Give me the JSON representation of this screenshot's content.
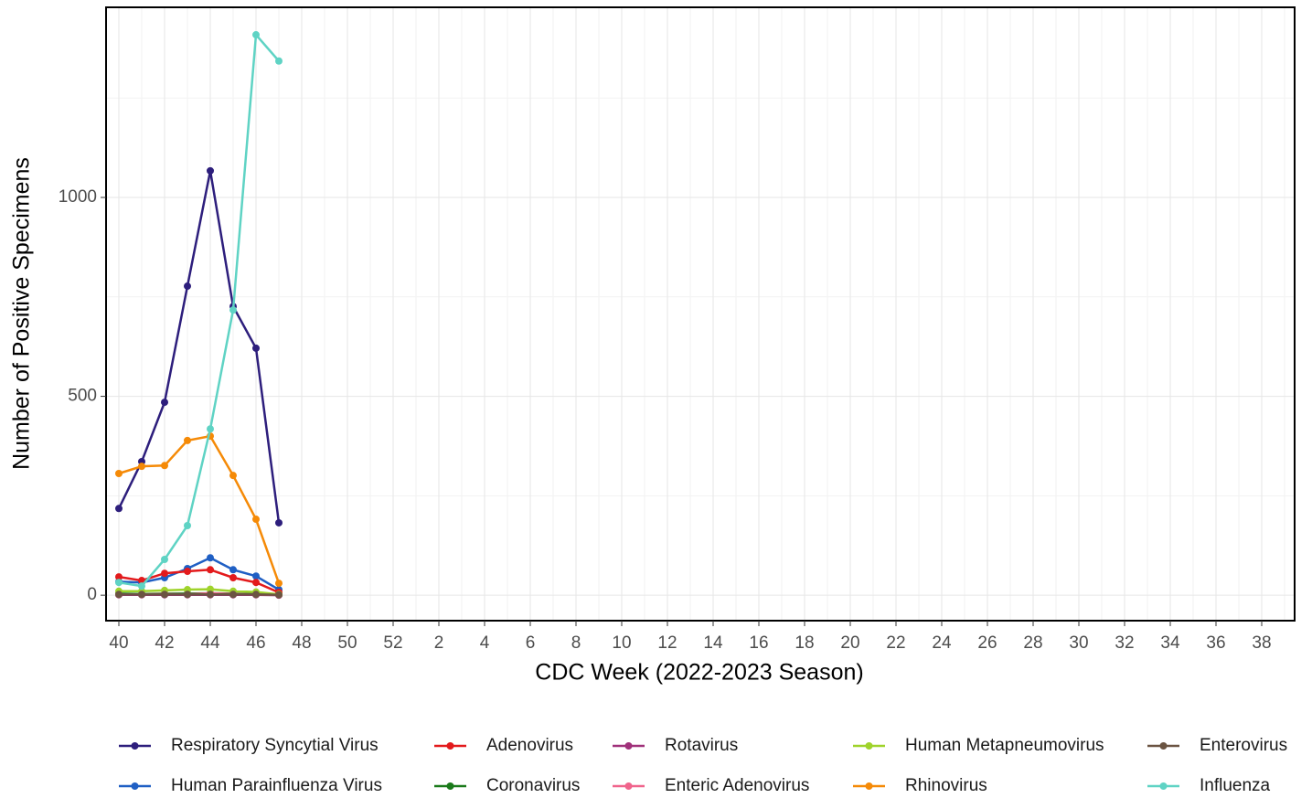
{
  "chart_data": {
    "type": "line",
    "x_label": "CDC Week (2022-2023 Season)",
    "y_label": "Number of Positive Specimens",
    "categories": [
      40,
      null,
      42,
      null,
      44,
      null,
      46,
      null,
      48,
      null,
      50,
      null,
      52,
      null,
      2,
      null,
      4,
      null,
      6,
      null,
      8,
      null,
      10,
      null,
      12,
      null,
      14,
      null,
      16,
      null,
      18,
      null,
      20,
      null,
      22,
      null,
      24,
      null,
      26,
      null,
      28,
      null,
      30,
      null,
      32,
      null,
      34,
      null,
      36,
      null,
      38,
      null
    ],
    "ylim": [
      -64,
      1478
    ],
    "yticks": [
      0,
      500,
      1000
    ],
    "yminor": [
      250,
      750,
      1250
    ],
    "grid": true,
    "legend": "bottom",
    "series": [
      {
        "name": "Respiratory Syncytial Virus",
        "color": "#2d1e7c",
        "values": [
          218,
          336,
          485,
          777,
          1067,
          726,
          621,
          182,
          null,
          null,
          null,
          null,
          null,
          null,
          null,
          null,
          null,
          null,
          null,
          null,
          null,
          null,
          null,
          null,
          null,
          null,
          null,
          null,
          null,
          null,
          null,
          null,
          null,
          null,
          null,
          null,
          null,
          null,
          null,
          null,
          null,
          null,
          null,
          null,
          null,
          null,
          null,
          null,
          null,
          null,
          null,
          null
        ]
      },
      {
        "name": "Human Parainfluenza Virus",
        "color": "#1f5fc4",
        "values": [
          34,
          32,
          44,
          67,
          94,
          64,
          48,
          14,
          null,
          null,
          null,
          null,
          null,
          null,
          null,
          null,
          null,
          null,
          null,
          null,
          null,
          null,
          null,
          null,
          null,
          null,
          null,
          null,
          null,
          null,
          null,
          null,
          null,
          null,
          null,
          null,
          null,
          null,
          null,
          null,
          null,
          null,
          null,
          null,
          null,
          null,
          null,
          null,
          null,
          null,
          null,
          null
        ]
      },
      {
        "name": "Adenovirus",
        "color": "#e31a1c",
        "values": [
          46,
          37,
          55,
          60,
          64,
          44,
          32,
          7,
          null,
          null,
          null,
          null,
          null,
          null,
          null,
          null,
          null,
          null,
          null,
          null,
          null,
          null,
          null,
          null,
          null,
          null,
          null,
          null,
          null,
          null,
          null,
          null,
          null,
          null,
          null,
          null,
          null,
          null,
          null,
          null,
          null,
          null,
          null,
          null,
          null,
          null,
          null,
          null,
          null,
          null,
          null,
          null
        ]
      },
      {
        "name": "Coronavirus",
        "color": "#1a7a1a",
        "values": [
          4,
          3,
          4,
          4,
          5,
          4,
          3,
          1,
          null,
          null,
          null,
          null,
          null,
          null,
          null,
          null,
          null,
          null,
          null,
          null,
          null,
          null,
          null,
          null,
          null,
          null,
          null,
          null,
          null,
          null,
          null,
          null,
          null,
          null,
          null,
          null,
          null,
          null,
          null,
          null,
          null,
          null,
          null,
          null,
          null,
          null,
          null,
          null,
          null,
          null,
          null,
          null
        ]
      },
      {
        "name": "Rotavirus",
        "color": "#a0317a",
        "values": [
          1,
          1,
          1,
          1,
          1,
          1,
          1,
          0,
          null,
          null,
          null,
          null,
          null,
          null,
          null,
          null,
          null,
          null,
          null,
          null,
          null,
          null,
          null,
          null,
          null,
          null,
          null,
          null,
          null,
          null,
          null,
          null,
          null,
          null,
          null,
          null,
          null,
          null,
          null,
          null,
          null,
          null,
          null,
          null,
          null,
          null,
          null,
          null,
          null,
          null,
          null,
          null
        ]
      },
      {
        "name": "Enteric Adenovirus",
        "color": "#f0648c",
        "values": [
          2,
          2,
          3,
          2,
          5,
          3,
          2,
          1,
          null,
          null,
          null,
          null,
          null,
          null,
          null,
          null,
          null,
          null,
          null,
          null,
          null,
          null,
          null,
          null,
          null,
          null,
          null,
          null,
          null,
          null,
          null,
          null,
          null,
          null,
          null,
          null,
          null,
          null,
          null,
          null,
          null,
          null,
          null,
          null,
          null,
          null,
          null,
          null,
          null,
          null,
          null,
          null
        ]
      },
      {
        "name": "Human Metapneumovirus",
        "color": "#9fd32b",
        "values": [
          10,
          10,
          12,
          14,
          15,
          10,
          8,
          2,
          null,
          null,
          null,
          null,
          null,
          null,
          null,
          null,
          null,
          null,
          null,
          null,
          null,
          null,
          null,
          null,
          null,
          null,
          null,
          null,
          null,
          null,
          null,
          null,
          null,
          null,
          null,
          null,
          null,
          null,
          null,
          null,
          null,
          null,
          null,
          null,
          null,
          null,
          null,
          null,
          null,
          null,
          null,
          null
        ]
      },
      {
        "name": "Rhinovirus",
        "color": "#f58a07",
        "values": [
          306,
          324,
          326,
          389,
          400,
          301,
          191,
          30,
          null,
          null,
          null,
          null,
          null,
          null,
          null,
          null,
          null,
          null,
          null,
          null,
          null,
          null,
          null,
          null,
          null,
          null,
          null,
          null,
          null,
          null,
          null,
          null,
          null,
          null,
          null,
          null,
          null,
          null,
          null,
          null,
          null,
          null,
          null,
          null,
          null,
          null,
          null,
          null,
          null,
          null,
          null,
          null
        ]
      },
      {
        "name": "Enterovirus",
        "color": "#6b5442",
        "values": [
          2,
          2,
          2,
          2,
          2,
          2,
          2,
          1,
          null,
          null,
          null,
          null,
          null,
          null,
          null,
          null,
          null,
          null,
          null,
          null,
          null,
          null,
          null,
          null,
          null,
          null,
          null,
          null,
          null,
          null,
          null,
          null,
          null,
          null,
          null,
          null,
          null,
          null,
          null,
          null,
          null,
          null,
          null,
          null,
          null,
          null,
          null,
          null,
          null,
          null,
          null,
          null
        ]
      },
      {
        "name": "Influenza",
        "color": "#5fd3c4",
        "values": [
          32,
          23,
          90,
          175,
          418,
          717,
          1409,
          1343,
          null,
          null,
          null,
          null,
          null,
          null,
          null,
          null,
          null,
          null,
          null,
          null,
          null,
          null,
          null,
          null,
          null,
          null,
          null,
          null,
          null,
          null,
          null,
          null,
          null,
          null,
          null,
          null,
          null,
          null,
          null,
          null,
          null,
          null,
          null,
          null,
          null,
          null,
          null,
          null,
          null,
          null,
          null,
          null
        ]
      }
    ]
  }
}
